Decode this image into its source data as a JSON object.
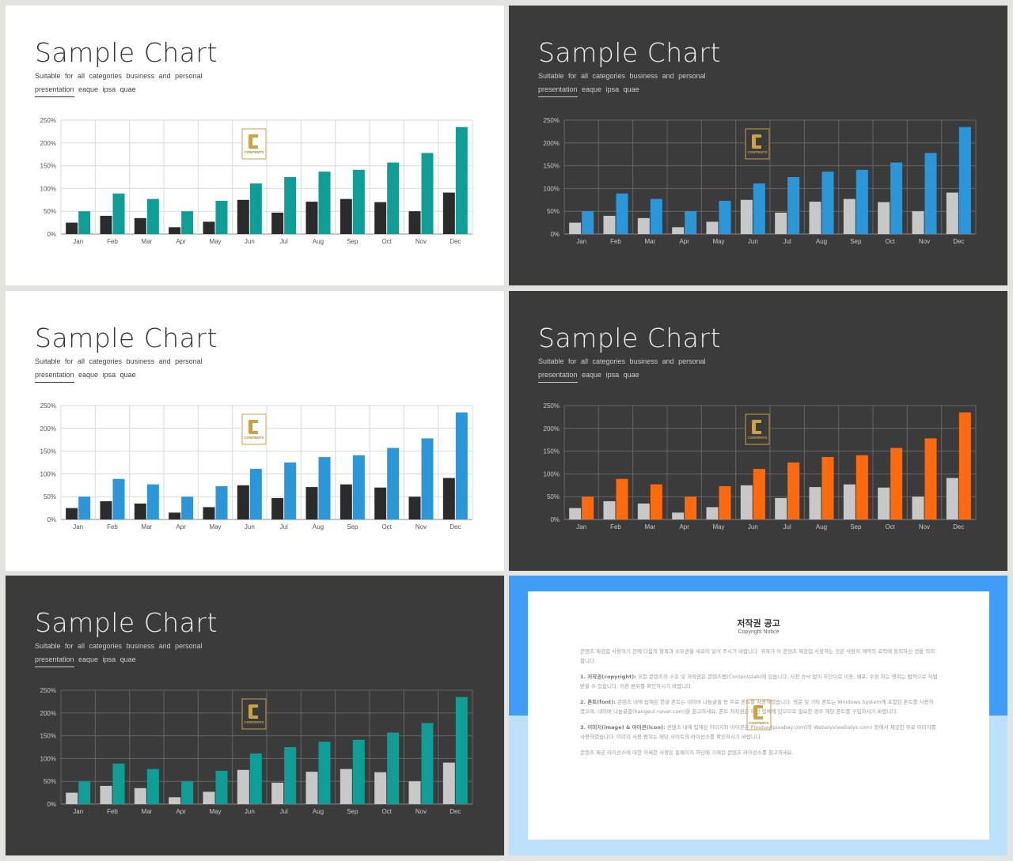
{
  "slide": {
    "title": "Sample Chart",
    "subtitle_line1": "Suitable  for  all  categories  business  and  personal",
    "subtitle_line2": "presentation  eaque  ipsa  quae",
    "logo_text": "CONTENTS"
  },
  "themes": [
    {
      "name": "light-teal",
      "background": "#ffffff",
      "series1_color": "#2b2b2b",
      "series2_color": "#0e9e96",
      "grid_color": "#d9d9d9",
      "axis_color": "#8a8a8a",
      "label_color": "#555555"
    },
    {
      "name": "dark-blue",
      "background": "#3b3b3b",
      "series1_color": "#c8c8c8",
      "series2_color": "#2b96d8",
      "grid_color": "#666666",
      "axis_color": "#888888",
      "label_color": "#c8c8c8"
    },
    {
      "name": "light-blue",
      "background": "#ffffff",
      "series1_color": "#2b2b2b",
      "series2_color": "#2b96d8",
      "grid_color": "#d9d9d9",
      "axis_color": "#8a8a8a",
      "label_color": "#555555"
    },
    {
      "name": "dark-orange",
      "background": "#3b3b3b",
      "series1_color": "#c8c8c8",
      "series2_color": "#ff6a0f",
      "grid_color": "#666666",
      "axis_color": "#888888",
      "label_color": "#c8c8c8"
    },
    {
      "name": "dark-teal",
      "background": "#3b3b3b",
      "series1_color": "#c8c8c8",
      "series2_color": "#0e9e96",
      "grid_color": "#666666",
      "axis_color": "#888888",
      "label_color": "#c8c8c8"
    }
  ],
  "chart_data": {
    "type": "bar",
    "categories": [
      "Jan",
      "Feb",
      "Mar",
      "Apr",
      "May",
      "Jun",
      "Jul",
      "Aug",
      "Sep",
      "Oct",
      "Nov",
      "Dec"
    ],
    "series": [
      {
        "values": [
          25,
          40,
          35,
          15,
          27,
          75,
          47,
          71,
          77,
          70,
          50,
          91
        ]
      },
      {
        "values": [
          50,
          89,
          77,
          50,
          73,
          111,
          125,
          137,
          141,
          157,
          178,
          235
        ]
      }
    ],
    "ytick_labels": [
      "0%",
      "50%",
      "100%",
      "150%",
      "200%",
      "250%"
    ],
    "ylim": [
      0,
      250
    ],
    "grid": true,
    "legend": "none"
  },
  "notice": {
    "title": "저작권 공고",
    "subtitle": "Copyright Notice",
    "paragraphs": [
      {
        "heading": "",
        "text": "콘텐츠 제공업 사용하기 전에 다음의 항목과 소유권을 새로이 읽어 주시기 바랍니다. 귀하가 이 콘텐츠 제공업 사용하는 것은 사용자 계약의 효력에 동의하신 것을 의미합니다."
      },
      {
        "heading": "1. 저작권(copyright): ",
        "text": "모든 콘텐츠의 소유 및 저작권은 콘텐츠랩(Contentslab)에 있습니다. 사전 승낙 없이 무단으로 이용, 배포, 수정 하는 행위는 법적으로 처벌받을 수 있습니다. 이용 범위를 확인하시기 바랍니다."
      },
      {
        "heading": "2. 폰트(font): ",
        "text": "콘텐츠 내에 탑재된 한글 폰트는 네이버 나눔글꼴 등 무료 폰트를 사용하였습니다. 영문 및 기타 폰트는 Windows System에 포함된 폰트를 사용하였으며, 네이버 나눔글꼴(hangeul.naver.com)을 참고하세요. 폰트 저작권은 해당 업체에 있으므로 필요한 경우 해당 폰트를 구입하시기 바랍니다."
      },
      {
        "heading": "3. 이미지(image) & 아이콘(icon): ",
        "text": "콘텐츠 내에 탑재된 이미지와 아이콘은 Pixabay(pixabay.com)와 Webalys(webalys.com) 등에서 제공한 무료 이미지를 사용하였습니다. 이미지 사용 범위는 해당 사이트의 라이선스를 확인하시기 바랍니다."
      },
      {
        "heading": "",
        "text": "콘텐츠 제공 라이선스에 대한 자세한 사항은 홈페이지 하단에 기재된 콘텐츠 라이선스를 참고하세요."
      }
    ]
  }
}
